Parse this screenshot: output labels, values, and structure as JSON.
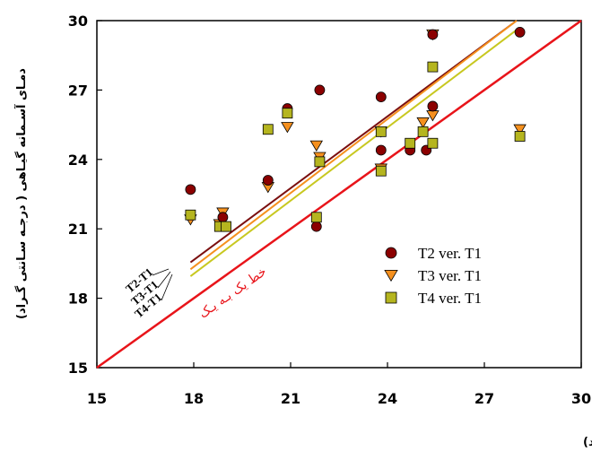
{
  "chart_data": {
    "type": "scatter",
    "xlabel": "ـای آسـمانه گیـاهی در پـلات تحـت آبیـاری کامـل ( درجـه سـانتی گـراد)",
    "ylabel": "دمـای آسـمانه گیـاهی ( درجـه سـانتی گـراد)",
    "xlim": [
      15,
      30
    ],
    "ylim": [
      15,
      30
    ],
    "x_ticks": [
      "15",
      "18",
      "21",
      "24",
      "27",
      "30"
    ],
    "y_ticks": [
      "15",
      "18",
      "21",
      "24",
      "27",
      "30"
    ],
    "grid": false,
    "legend_position": "right",
    "series": [
      {
        "name": "T2 ver. T1",
        "marker": "circle",
        "color": "#8b0000",
        "points": [
          [
            17.9,
            22.7
          ],
          [
            18.9,
            21.5
          ],
          [
            20.3,
            23.1
          ],
          [
            20.9,
            26.2
          ],
          [
            21.9,
            27.0
          ],
          [
            21.8,
            21.1
          ],
          [
            23.8,
            24.4
          ],
          [
            23.8,
            26.7
          ],
          [
            24.7,
            24.4
          ],
          [
            25.2,
            24.4
          ],
          [
            25.4,
            26.3
          ],
          [
            25.4,
            29.4
          ],
          [
            28.1,
            29.5
          ]
        ]
      },
      {
        "name": "T3 ver. T1",
        "marker": "triangle-down",
        "color": "#f5901e",
        "points": [
          [
            17.9,
            21.4
          ],
          [
            18.9,
            21.7
          ],
          [
            18.8,
            21.2
          ],
          [
            20.3,
            22.8
          ],
          [
            20.9,
            25.4
          ],
          [
            21.8,
            24.6
          ],
          [
            21.9,
            24.1
          ],
          [
            23.8,
            25.2
          ],
          [
            23.8,
            23.6
          ],
          [
            25.1,
            25.6
          ],
          [
            25.4,
            25.9
          ],
          [
            25.4,
            29.4
          ],
          [
            28.1,
            25.3
          ]
        ]
      },
      {
        "name": "T4 ver. T1",
        "marker": "square",
        "color": "#b5b51f",
        "points": [
          [
            17.9,
            21.6
          ],
          [
            18.8,
            21.1
          ],
          [
            19.0,
            21.1
          ],
          [
            20.3,
            25.3
          ],
          [
            20.9,
            26.0
          ],
          [
            21.8,
            21.5
          ],
          [
            21.9,
            23.9
          ],
          [
            23.8,
            25.2
          ],
          [
            23.8,
            23.5
          ],
          [
            24.7,
            24.7
          ],
          [
            25.1,
            25.2
          ],
          [
            25.4,
            24.7
          ],
          [
            25.4,
            28.0
          ],
          [
            28.1,
            25.0
          ]
        ]
      }
    ],
    "regression_lines": [
      {
        "label": "T2-T1",
        "color": "#7b0f0f",
        "x": [
          17.9,
          28.0
        ],
        "y": [
          19.55,
          30.0
        ]
      },
      {
        "label": "T3-T1",
        "color": "#f5901e",
        "x": [
          17.9,
          28.0
        ],
        "y": [
          19.25,
          30.0
        ]
      },
      {
        "label": "T4-T1",
        "color": "#c8c820",
        "x": [
          17.9,
          28.0
        ],
        "y": [
          18.95,
          29.6
        ]
      }
    ],
    "reference_line": {
      "label": "خط یک بـه یـک",
      "color": "#e8141a",
      "x": [
        15,
        30
      ],
      "y": [
        15,
        30
      ]
    }
  }
}
